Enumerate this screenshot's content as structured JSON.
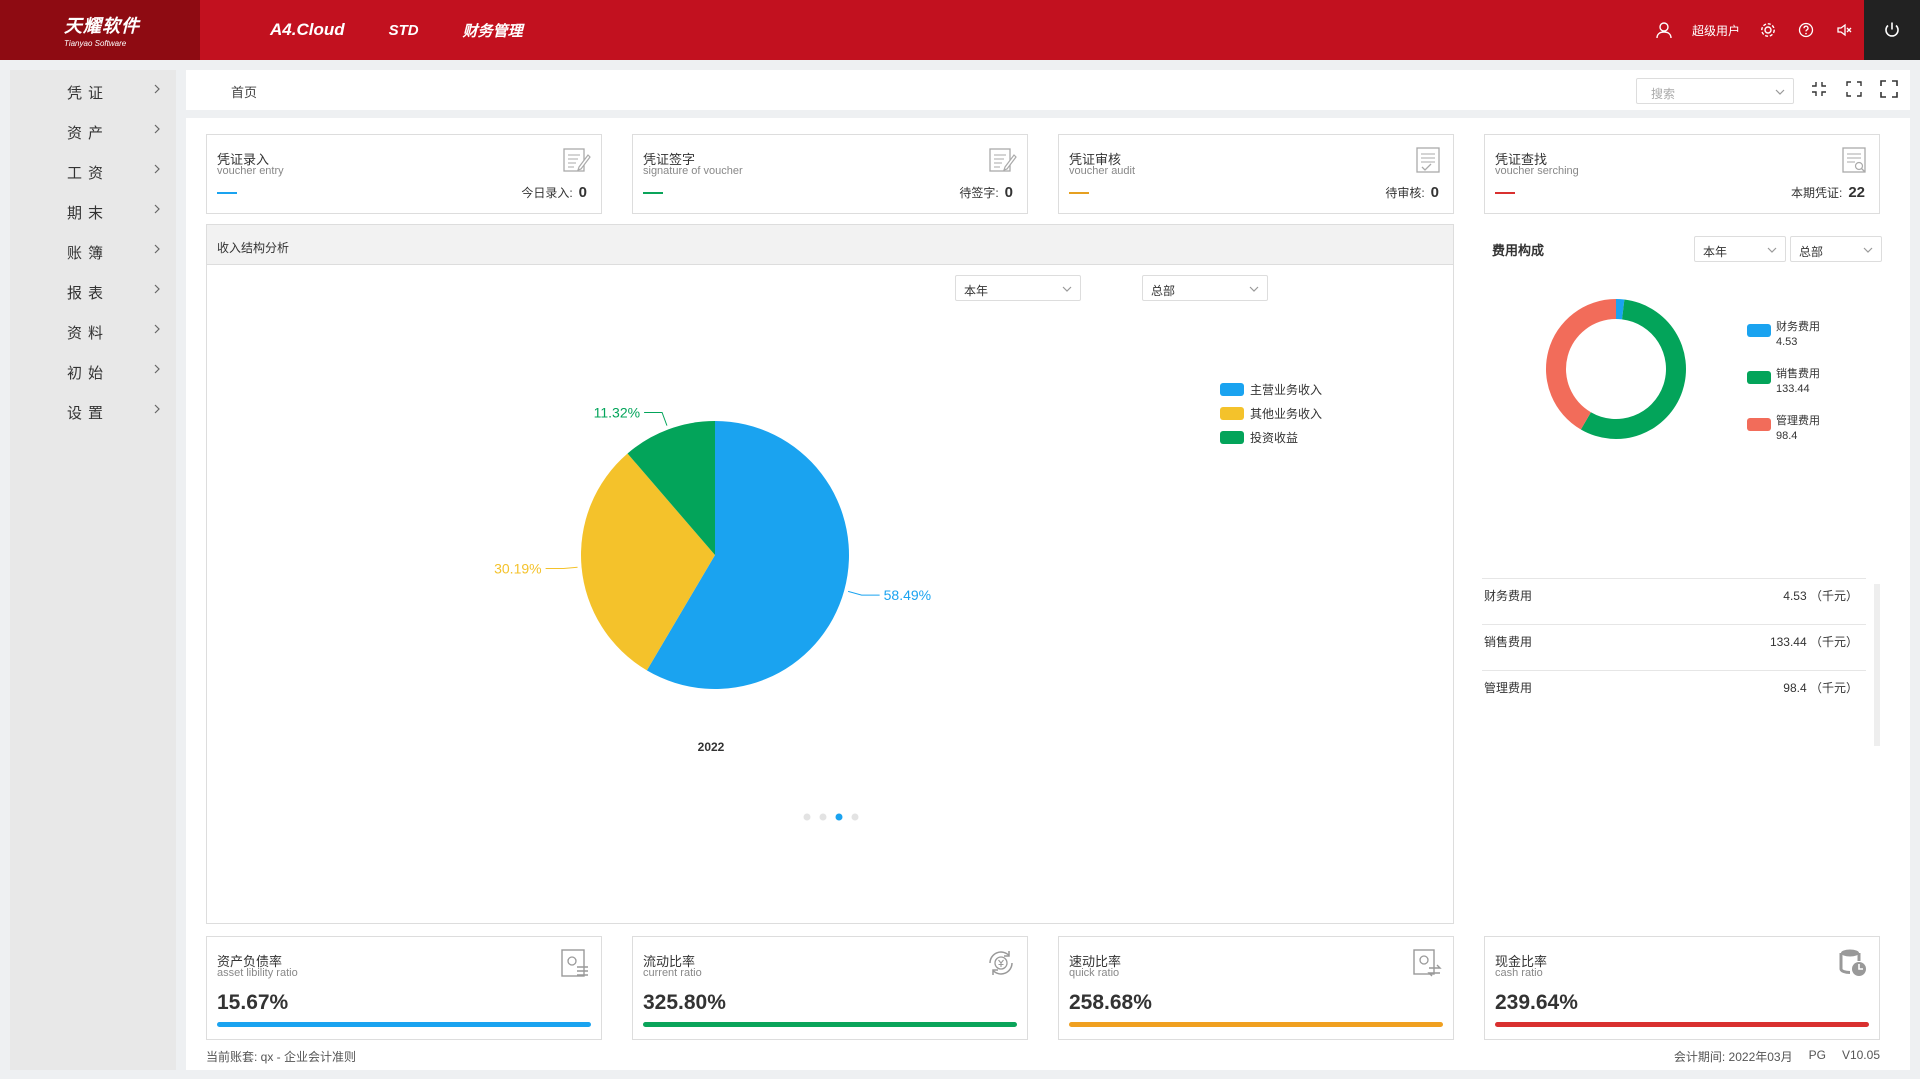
{
  "header": {
    "logo_cn": "天耀软件",
    "logo_en": "Tianyao Software",
    "brand": "A4.Cloud",
    "nav": [
      "STD",
      "财务管理"
    ],
    "user": "超级用户",
    "icons": [
      "user-icon",
      "settings-icon",
      "help-icon",
      "mute-icon",
      "power-icon"
    ]
  },
  "sidebar": {
    "items": [
      {
        "label": "凭证"
      },
      {
        "label": "资产"
      },
      {
        "label": "工资"
      },
      {
        "label": "期末"
      },
      {
        "label": "账簿"
      },
      {
        "label": "报表"
      },
      {
        "label": "资料"
      },
      {
        "label": "初始"
      },
      {
        "label": "设置"
      }
    ]
  },
  "breadcrumb": {
    "home": "首页"
  },
  "search": {
    "placeholder": "搜索"
  },
  "cards": [
    {
      "title": "凭证录入",
      "subtitle": "voucher entry",
      "count_label": "今日录入:",
      "count": "0",
      "color": "#1aa3f0"
    },
    {
      "title": "凭证签字",
      "subtitle": "signature of voucher",
      "count_label": "待签字:",
      "count": "0",
      "color": "#0aa45a"
    },
    {
      "title": "凭证审核",
      "subtitle": "voucher audit",
      "count_label": "待审核:",
      "count": "0",
      "color": "#e6a020"
    },
    {
      "title": "凭证查找",
      "subtitle": "voucher serching",
      "count_label": "本期凭证:",
      "count": "22",
      "color": "#d9302f"
    }
  ],
  "income_panel": {
    "title": "收入结构分析",
    "period_select": "本年",
    "dept_select": "总部",
    "year_label": "2022"
  },
  "chart_data": [
    {
      "type": "pie",
      "categories": [
        "主营业务收入",
        "其他业务收入",
        "投资收益"
      ],
      "values": [
        58.49,
        30.19,
        11.32
      ],
      "value_labels": [
        "58.49%",
        "30.19%",
        "11.32%"
      ],
      "colors": [
        "#1aa3f0",
        "#f4c22b",
        "#03a45a"
      ],
      "subtitle": "2022",
      "legend_position": "right"
    },
    {
      "type": "pie",
      "donut": true,
      "categories": [
        "财务费用",
        "销售费用",
        "管理费用"
      ],
      "values": [
        4.53,
        133.44,
        98.4
      ],
      "value_labels": [
        "4.53",
        "133.44",
        "98.4"
      ],
      "colors": [
        "#1aa3f0",
        "#03a45a",
        "#f26c5a"
      ],
      "title": "费用构成",
      "legend_position": "right"
    }
  ],
  "expense_panel": {
    "title": "费用构成",
    "period_select": "本年",
    "dept_select": "总部",
    "unit": "（千元）",
    "rows": [
      {
        "name": "财务费用",
        "value": "4.53"
      },
      {
        "name": "销售费用",
        "value": "133.44"
      },
      {
        "name": "管理费用",
        "value": "98.4"
      }
    ]
  },
  "ratios": [
    {
      "title": "资产负债率",
      "subtitle": "asset libility ratio",
      "value": "15.67%",
      "color": "#1aa3f0"
    },
    {
      "title": "流动比率",
      "subtitle": "current ratio",
      "value": "325.80%",
      "color": "#0aa45a"
    },
    {
      "title": "速动比率",
      "subtitle": "quick ratio",
      "value": "258.68%",
      "color": "#f0a020"
    },
    {
      "title": "现金比率",
      "subtitle": "cash ratio",
      "value": "239.64%",
      "color": "#d9302f"
    }
  ],
  "footer": {
    "account": "当前账套: qx - 企业会计准则",
    "period": "会计期间: 2022年03月",
    "db": "PG",
    "version": "V10.05"
  }
}
